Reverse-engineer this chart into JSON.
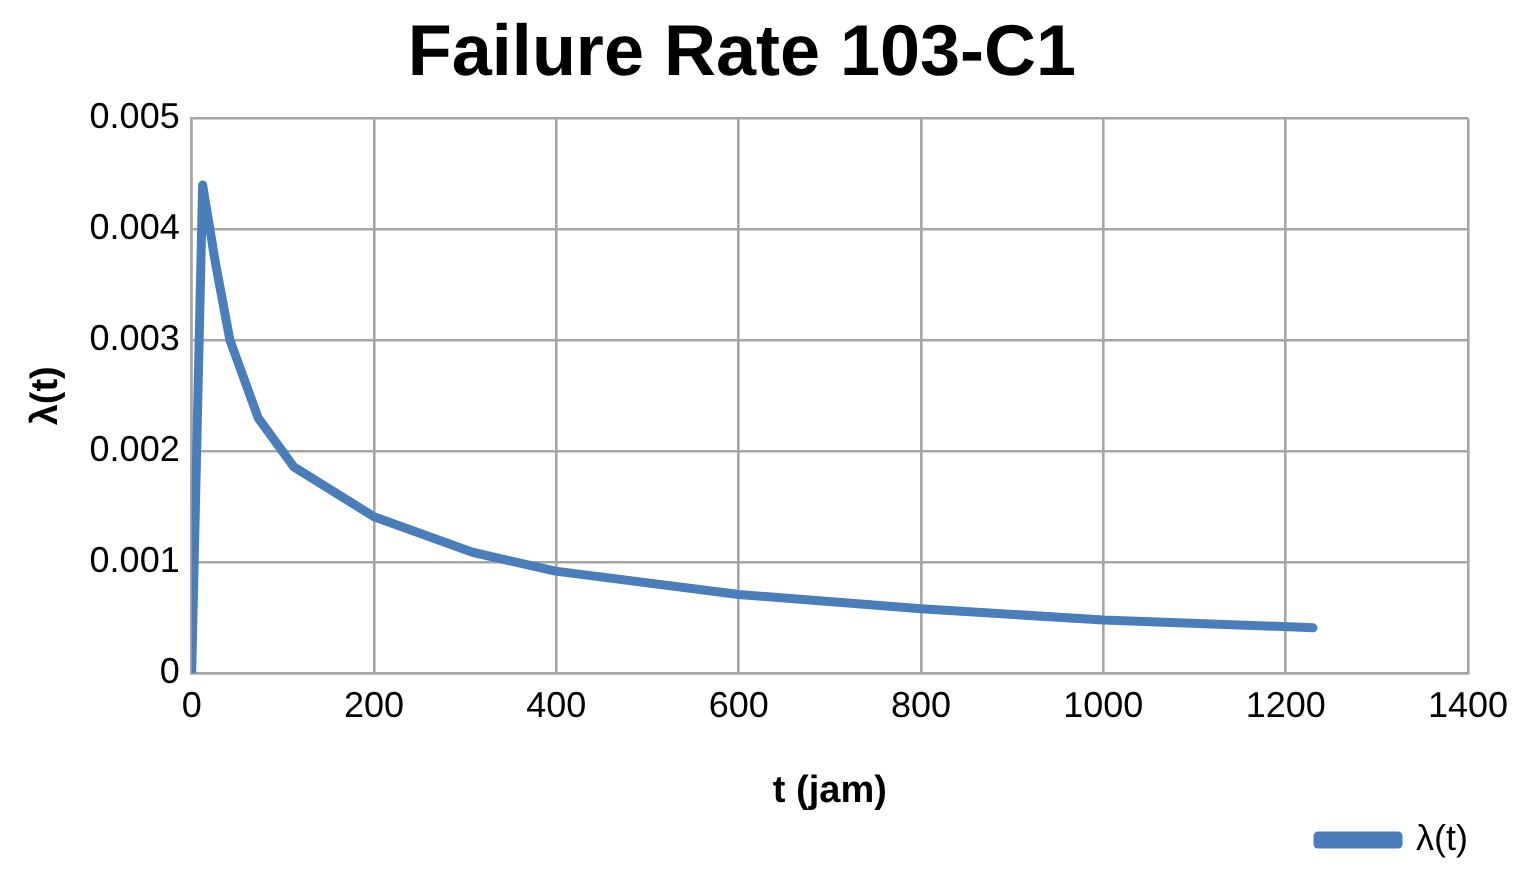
{
  "chart_data": {
    "type": "line",
    "title": "Failure Rate 103-C1",
    "xlabel": "t (jam)",
    "ylabel": "λ(t)",
    "x": [
      0,
      12,
      26,
      42,
      73,
      112,
      200,
      308,
      399,
      600,
      800,
      1000,
      1230
    ],
    "series": [
      {
        "name": "λ(t)",
        "color": "#4a7ebb",
        "values": [
          0,
          0.0044,
          0.0037,
          0.003,
          0.0023,
          0.00186,
          0.00141,
          0.00109,
          0.00092,
          0.00071,
          0.00058,
          0.00048,
          0.00041
        ]
      }
    ],
    "xlim": [
      0,
      1400
    ],
    "xticks": [
      0,
      200,
      400,
      600,
      800,
      1000,
      1200,
      1400
    ],
    "ylim": [
      0,
      0.005
    ],
    "yticks": [
      0,
      0.001,
      0.002,
      0.003,
      0.004,
      0.005
    ],
    "grid": true,
    "legend": "bottom right",
    "marker": "none",
    "line_style": "solid"
  }
}
